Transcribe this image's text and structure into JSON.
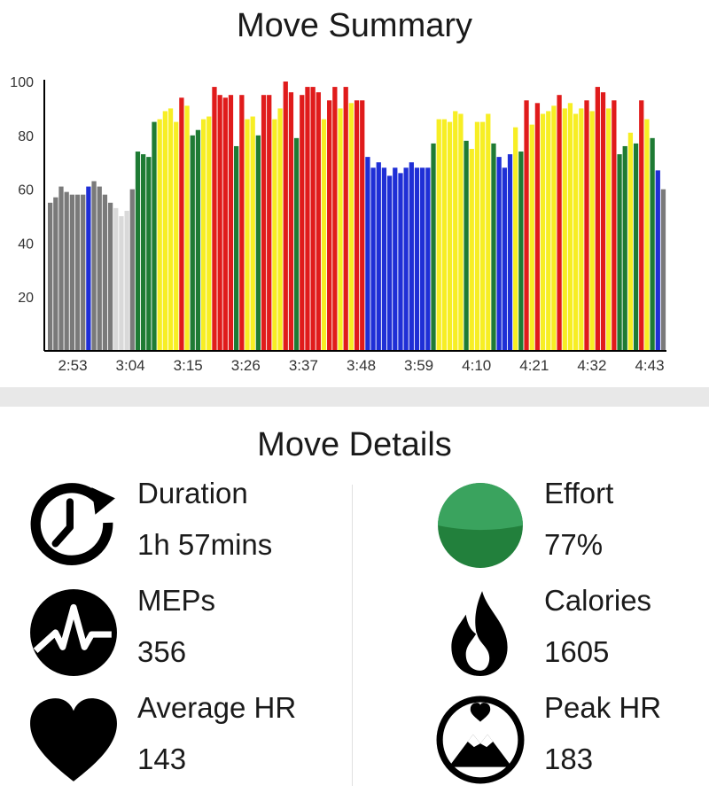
{
  "summary": {
    "title": "Move Summary"
  },
  "chart_data": {
    "type": "bar",
    "title": "Move Summary",
    "xlabel": "",
    "ylabel": "",
    "ylim": [
      0,
      100
    ],
    "y_ticks": [
      20,
      40,
      60,
      80,
      100
    ],
    "x_tick_labels": [
      "2:53",
      "3:04",
      "3:15",
      "3:26",
      "3:37",
      "3:48",
      "3:59",
      "4:10",
      "4:21",
      "4:32",
      "4:43"
    ],
    "zone_colors": {
      "gray": "#7a7a7a",
      "lightgray": "#d9d9d9",
      "blue": "#1f2fd6",
      "green": "#1e7b34",
      "yellow": "#f7ee24",
      "red": "#e01b1b"
    },
    "bars": [
      {
        "v": 55,
        "z": "gray"
      },
      {
        "v": 57,
        "z": "gray"
      },
      {
        "v": 61,
        "z": "gray"
      },
      {
        "v": 59,
        "z": "gray"
      },
      {
        "v": 58,
        "z": "gray"
      },
      {
        "v": 58,
        "z": "gray"
      },
      {
        "v": 58,
        "z": "gray"
      },
      {
        "v": 61,
        "z": "blue"
      },
      {
        "v": 63,
        "z": "gray"
      },
      {
        "v": 61,
        "z": "gray"
      },
      {
        "v": 58,
        "z": "gray"
      },
      {
        "v": 55,
        "z": "gray"
      },
      {
        "v": 53,
        "z": "lightgray"
      },
      {
        "v": 50,
        "z": "lightgray"
      },
      {
        "v": 52,
        "z": "lightgray"
      },
      {
        "v": 60,
        "z": "gray"
      },
      {
        "v": 74,
        "z": "green"
      },
      {
        "v": 73,
        "z": "green"
      },
      {
        "v": 72,
        "z": "green"
      },
      {
        "v": 85,
        "z": "green"
      },
      {
        "v": 86,
        "z": "yellow"
      },
      {
        "v": 89,
        "z": "yellow"
      },
      {
        "v": 90,
        "z": "yellow"
      },
      {
        "v": 85,
        "z": "yellow"
      },
      {
        "v": 94,
        "z": "red"
      },
      {
        "v": 91,
        "z": "yellow"
      },
      {
        "v": 80,
        "z": "green"
      },
      {
        "v": 82,
        "z": "green"
      },
      {
        "v": 86,
        "z": "yellow"
      },
      {
        "v": 87,
        "z": "yellow"
      },
      {
        "v": 98,
        "z": "red"
      },
      {
        "v": 95,
        "z": "red"
      },
      {
        "v": 94,
        "z": "red"
      },
      {
        "v": 95,
        "z": "red"
      },
      {
        "v": 76,
        "z": "green"
      },
      {
        "v": 95,
        "z": "red"
      },
      {
        "v": 86,
        "z": "yellow"
      },
      {
        "v": 87,
        "z": "yellow"
      },
      {
        "v": 80,
        "z": "green"
      },
      {
        "v": 95,
        "z": "red"
      },
      {
        "v": 95,
        "z": "red"
      },
      {
        "v": 86,
        "z": "yellow"
      },
      {
        "v": 90,
        "z": "yellow"
      },
      {
        "v": 100,
        "z": "red"
      },
      {
        "v": 96,
        "z": "red"
      },
      {
        "v": 79,
        "z": "green"
      },
      {
        "v": 95,
        "z": "red"
      },
      {
        "v": 98,
        "z": "red"
      },
      {
        "v": 98,
        "z": "red"
      },
      {
        "v": 96,
        "z": "red"
      },
      {
        "v": 86,
        "z": "yellow"
      },
      {
        "v": 93,
        "z": "red"
      },
      {
        "v": 98,
        "z": "red"
      },
      {
        "v": 90,
        "z": "yellow"
      },
      {
        "v": 98,
        "z": "red"
      },
      {
        "v": 92,
        "z": "yellow"
      },
      {
        "v": 93,
        "z": "red"
      },
      {
        "v": 93,
        "z": "red"
      },
      {
        "v": 72,
        "z": "blue"
      },
      {
        "v": 68,
        "z": "blue"
      },
      {
        "v": 70,
        "z": "blue"
      },
      {
        "v": 68,
        "z": "blue"
      },
      {
        "v": 65,
        "z": "blue"
      },
      {
        "v": 68,
        "z": "blue"
      },
      {
        "v": 66,
        "z": "blue"
      },
      {
        "v": 68,
        "z": "blue"
      },
      {
        "v": 70,
        "z": "blue"
      },
      {
        "v": 68,
        "z": "blue"
      },
      {
        "v": 68,
        "z": "blue"
      },
      {
        "v": 68,
        "z": "blue"
      },
      {
        "v": 77,
        "z": "green"
      },
      {
        "v": 86,
        "z": "yellow"
      },
      {
        "v": 86,
        "z": "yellow"
      },
      {
        "v": 85,
        "z": "yellow"
      },
      {
        "v": 89,
        "z": "yellow"
      },
      {
        "v": 88,
        "z": "yellow"
      },
      {
        "v": 78,
        "z": "green"
      },
      {
        "v": 75,
        "z": "yellow"
      },
      {
        "v": 85,
        "z": "yellow"
      },
      {
        "v": 85,
        "z": "yellow"
      },
      {
        "v": 88,
        "z": "yellow"
      },
      {
        "v": 77,
        "z": "green"
      },
      {
        "v": 72,
        "z": "blue"
      },
      {
        "v": 68,
        "z": "blue"
      },
      {
        "v": 73,
        "z": "blue"
      },
      {
        "v": 83,
        "z": "yellow"
      },
      {
        "v": 74,
        "z": "green"
      },
      {
        "v": 93,
        "z": "red"
      },
      {
        "v": 84,
        "z": "yellow"
      },
      {
        "v": 92,
        "z": "red"
      },
      {
        "v": 88,
        "z": "yellow"
      },
      {
        "v": 89,
        "z": "yellow"
      },
      {
        "v": 91,
        "z": "yellow"
      },
      {
        "v": 95,
        "z": "red"
      },
      {
        "v": 90,
        "z": "yellow"
      },
      {
        "v": 92,
        "z": "yellow"
      },
      {
        "v": 88,
        "z": "yellow"
      },
      {
        "v": 90,
        "z": "yellow"
      },
      {
        "v": 93,
        "z": "red"
      },
      {
        "v": 89,
        "z": "yellow"
      },
      {
        "v": 98,
        "z": "red"
      },
      {
        "v": 96,
        "z": "red"
      },
      {
        "v": 90,
        "z": "yellow"
      },
      {
        "v": 93,
        "z": "red"
      },
      {
        "v": 73,
        "z": "green"
      },
      {
        "v": 76,
        "z": "green"
      },
      {
        "v": 81,
        "z": "yellow"
      },
      {
        "v": 77,
        "z": "green"
      },
      {
        "v": 93,
        "z": "red"
      },
      {
        "v": 86,
        "z": "yellow"
      },
      {
        "v": 79,
        "z": "green"
      },
      {
        "v": 67,
        "z": "blue"
      },
      {
        "v": 60,
        "z": "gray"
      }
    ]
  },
  "details": {
    "title": "Move Details",
    "stats": [
      {
        "label": "Duration",
        "value": "1h 57mins",
        "icon": "duration-clock-icon"
      },
      {
        "label": "Effort",
        "value": "77%",
        "icon": "effort-circle-icon",
        "color": "#2a8a45"
      },
      {
        "label": "MEPs",
        "value": "356",
        "icon": "meps-pulse-icon"
      },
      {
        "label": "Calories",
        "value": "1605",
        "icon": "calories-flame-icon"
      },
      {
        "label": "Average HR",
        "value": "143",
        "icon": "average-hr-heart-icon"
      },
      {
        "label": "Peak HR",
        "value": "183",
        "icon": "peak-hr-mountain-icon"
      }
    ]
  }
}
